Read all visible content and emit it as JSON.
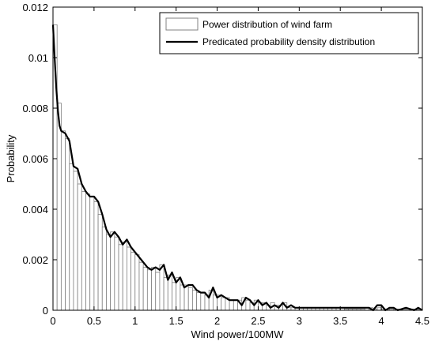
{
  "chart_data": {
    "type": "bar",
    "xlabel": "Wind power/100MW",
    "ylabel": "Probability",
    "xlim": [
      0,
      4.5
    ],
    "ylim": [
      0,
      0.012
    ],
    "xticks": [
      0,
      0.5,
      1,
      1.5,
      2,
      2.5,
      3,
      3.5,
      4,
      4.5
    ],
    "xtick_labels": [
      "0",
      "0.5",
      "1",
      "1.5",
      "2",
      "2.5",
      "3",
      "3.5",
      "4",
      "4.5"
    ],
    "yticks": [
      0,
      0.002,
      0.004,
      0.006,
      0.008,
      0.01,
      0.012
    ],
    "ytick_labels": [
      "0",
      "0.002",
      "0.004",
      "0.006",
      "0.008",
      "0.01",
      "0.012"
    ],
    "grid": false,
    "legend_position": "top-right",
    "legend": [
      "Power distribution of wind farm",
      "Predicated probability density distribution"
    ],
    "series": [
      {
        "name": "Power distribution of wind farm",
        "type": "bar",
        "x": [
          0.025,
          0.075,
          0.125,
          0.175,
          0.225,
          0.275,
          0.325,
          0.375,
          0.425,
          0.475,
          0.525,
          0.575,
          0.625,
          0.675,
          0.725,
          0.775,
          0.825,
          0.875,
          0.925,
          0.975,
          1.025,
          1.075,
          1.125,
          1.175,
          1.225,
          1.275,
          1.325,
          1.375,
          1.425,
          1.475,
          1.525,
          1.575,
          1.625,
          1.675,
          1.725,
          1.775,
          1.825,
          1.875,
          1.925,
          1.975,
          2.025,
          2.075,
          2.125,
          2.175,
          2.225,
          2.275,
          2.325,
          2.375,
          2.425,
          2.475,
          2.525,
          2.575,
          2.625,
          2.675,
          2.725,
          2.775,
          2.825,
          2.875,
          2.925,
          2.975,
          3.025,
          3.075,
          3.125,
          3.175,
          3.225,
          3.275,
          3.325,
          3.375,
          3.425,
          3.475,
          3.525,
          3.575,
          3.625,
          3.675,
          3.725,
          3.775,
          3.825,
          3.875,
          3.925,
          3.975,
          4.025,
          4.075,
          4.125,
          4.175,
          4.225,
          4.275,
          4.325,
          4.375,
          4.425,
          4.475
        ],
        "values": [
          0.0113,
          0.0082,
          0.0071,
          0.0068,
          0.0058,
          0.0055,
          0.005,
          0.0047,
          0.0046,
          0.0045,
          0.0043,
          0.0038,
          0.0033,
          0.003,
          0.0031,
          0.0029,
          0.0026,
          0.0027,
          0.0025,
          0.0023,
          0.0022,
          0.0019,
          0.0017,
          0.0016,
          0.0017,
          0.0015,
          0.0018,
          0.0013,
          0.0014,
          0.0011,
          0.0013,
          0.001,
          0.001,
          0.0009,
          0.0008,
          0.0007,
          0.0007,
          0.0006,
          0.0008,
          0.0006,
          0.0006,
          0.0005,
          0.0005,
          0.0004,
          0.0004,
          0.0004,
          0.0005,
          0.0004,
          0.0003,
          0.0004,
          0.0003,
          0.0003,
          0.0002,
          0.0003,
          0.0002,
          0.0002,
          0.0003,
          0.0001,
          0.0001,
          0.0001,
          0.0001,
          0.0001,
          0.0001,
          0.0001,
          0.0001,
          0.0001,
          0.0001,
          0.0001,
          0.0001,
          0.0001,
          0.0001,
          5e-05,
          5e-05,
          5e-05,
          5e-05,
          5e-05,
          0.0001,
          0.0001,
          5e-05,
          0.0001,
          5e-05,
          5e-05,
          5e-05,
          5e-05,
          5e-05,
          5e-05,
          5e-05,
          5e-05,
          5e-05,
          5e-05
        ]
      },
      {
        "name": "Predicated probability density distribution",
        "type": "line",
        "color": "#000000",
        "x": [
          0,
          0.02,
          0.04,
          0.06,
          0.08,
          0.1,
          0.15,
          0.2,
          0.25,
          0.3,
          0.35,
          0.4,
          0.45,
          0.5,
          0.55,
          0.6,
          0.65,
          0.7,
          0.75,
          0.8,
          0.85,
          0.9,
          0.95,
          1.0,
          1.05,
          1.1,
          1.15,
          1.2,
          1.25,
          1.3,
          1.35,
          1.4,
          1.45,
          1.5,
          1.55,
          1.6,
          1.65,
          1.7,
          1.75,
          1.8,
          1.85,
          1.9,
          1.95,
          2.0,
          2.05,
          2.1,
          2.15,
          2.2,
          2.25,
          2.3,
          2.35,
          2.4,
          2.45,
          2.5,
          2.55,
          2.6,
          2.65,
          2.7,
          2.75,
          2.8,
          2.85,
          2.9,
          2.95,
          3.0,
          3.1,
          3.2,
          3.3,
          3.4,
          3.5,
          3.6,
          3.7,
          3.8,
          3.85,
          3.9,
          3.95,
          4.0,
          4.05,
          4.1,
          4.15,
          4.2,
          4.3,
          4.4,
          4.45,
          4.5
        ],
        "values": [
          0.0113,
          0.01,
          0.0088,
          0.0079,
          0.0073,
          0.0071,
          0.007,
          0.0067,
          0.0057,
          0.0056,
          0.005,
          0.0047,
          0.0045,
          0.0045,
          0.0043,
          0.0038,
          0.0032,
          0.0029,
          0.0031,
          0.0029,
          0.0026,
          0.0028,
          0.0025,
          0.0023,
          0.0021,
          0.0019,
          0.0017,
          0.0016,
          0.0017,
          0.0016,
          0.0018,
          0.0012,
          0.0015,
          0.0011,
          0.0013,
          0.0009,
          0.001,
          0.001,
          0.0008,
          0.0007,
          0.0007,
          0.0005,
          0.0009,
          0.0005,
          0.0006,
          0.0005,
          0.0004,
          0.0004,
          0.0004,
          0.0002,
          0.0005,
          0.0004,
          0.0002,
          0.0004,
          0.0002,
          0.0003,
          0.0001,
          0.0002,
          0.0001,
          0.0003,
          0.0001,
          0.0002,
          0.0001,
          0.0001,
          0.0001,
          0.0001,
          0.0001,
          0.0001,
          0.0001,
          0.0001,
          0.0001,
          0.0001,
          0.0001,
          0.0,
          0.0002,
          0.0002,
          0.0,
          0.0001,
          0.0001,
          0.0,
          0.0001,
          0.0,
          0.0001,
          0.0
        ]
      }
    ]
  }
}
